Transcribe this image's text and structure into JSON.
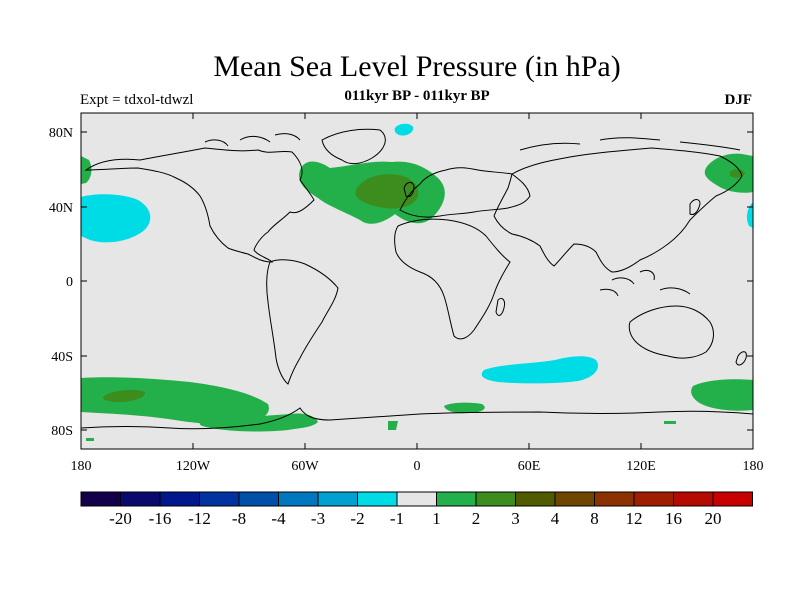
{
  "title": "Mean Sea Level Pressure (in hPa)",
  "subtitle": "011kyr BP - 011kyr BP",
  "expt_label": "Expt = tdxol-tdwzl",
  "season": "DJF",
  "map": {
    "lon_ticks": [
      "180",
      "120W",
      "60W",
      "0",
      "60E",
      "120E",
      "180"
    ],
    "lat_ticks": [
      "80N",
      "40N",
      "0",
      "40S",
      "80S"
    ],
    "ocean_color": "#e6e6e6",
    "coast_color": "#000000"
  },
  "colorbar": {
    "colors": [
      "#12004a",
      "#0a0a6e",
      "#00188c",
      "#0032a0",
      "#0050aa",
      "#0078c0",
      "#00a0d2",
      "#00dce6",
      "#e6e6e6",
      "#23b04a",
      "#3c8c1e",
      "#505a00",
      "#6e4600",
      "#8c3200",
      "#a01e00",
      "#b40a00",
      "#c80000"
    ],
    "labels": [
      "-20",
      "-16",
      "-12",
      "-8",
      "-4",
      "-3",
      "-2",
      "-1",
      "1",
      "2",
      "3",
      "4",
      "8",
      "12",
      "16",
      "20"
    ]
  }
}
